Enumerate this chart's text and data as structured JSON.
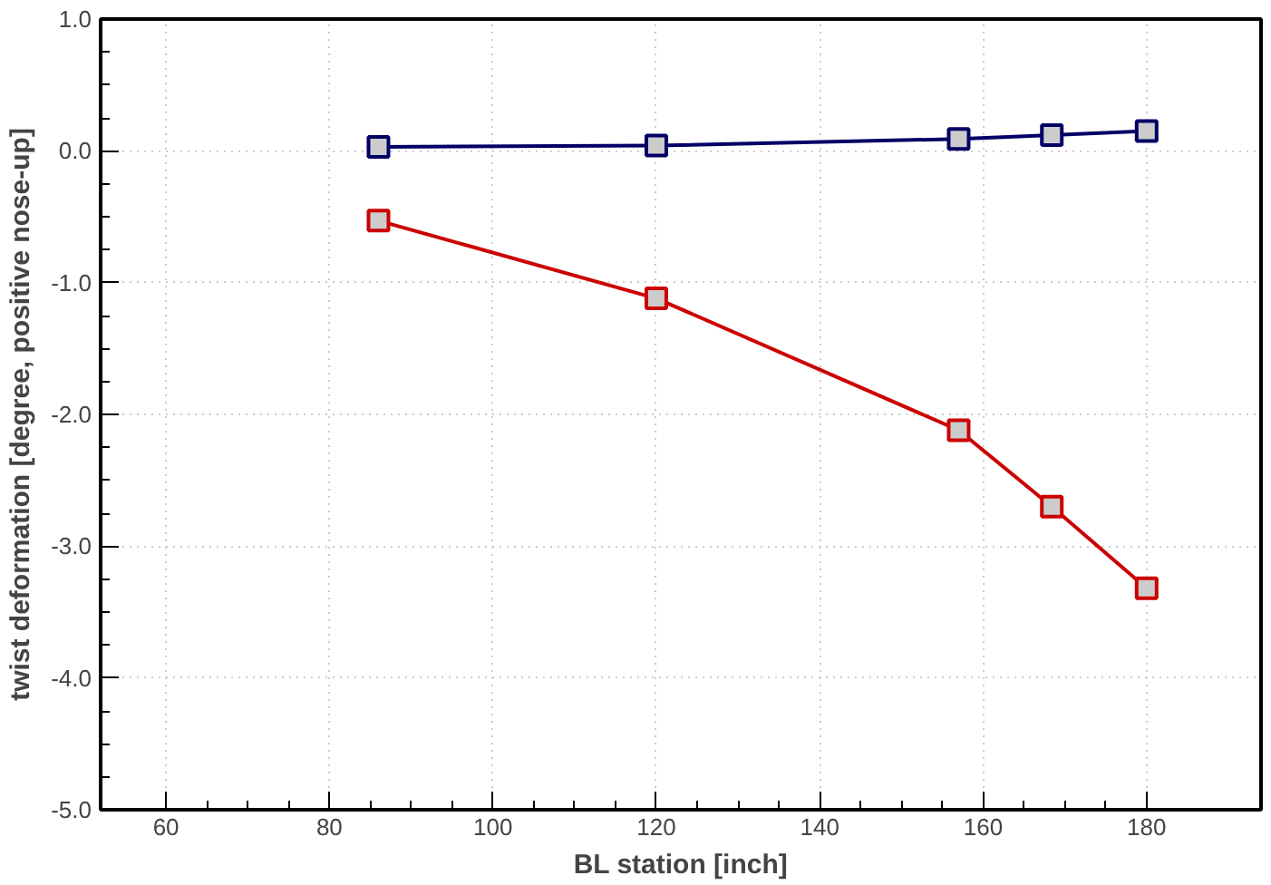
{
  "chart_data": {
    "type": "line",
    "xlabel": "BL station [inch]",
    "ylabel": "twist deformation [degree, positive nose-up]",
    "xlim": [
      52,
      194
    ],
    "xticks": [
      60,
      80,
      100,
      120,
      140,
      160,
      180
    ],
    "ylim": [
      -5,
      1
    ],
    "yticks": [
      {
        "value": 1,
        "label": "1.0"
      },
      {
        "value": 0,
        "label": "0.0"
      },
      {
        "value": -1,
        "label": "-1.0"
      },
      {
        "value": -2,
        "label": "-2.0"
      },
      {
        "value": -3,
        "label": "-3.0"
      },
      {
        "value": -4,
        "label": "-4.0"
      },
      {
        "value": -5,
        "label": "-5.0"
      }
    ],
    "grid": true,
    "marker": "square",
    "line_style": "solid",
    "series": [
      {
        "color": "#cc0000",
        "x": [
          86,
          120,
          157,
          168.4,
          180
        ],
        "values": [
          -0.53,
          -1.12,
          -2.12,
          -2.7,
          -3.32
        ]
      },
      {
        "color": "#000066",
        "x": [
          86,
          120,
          157,
          168.4,
          180
        ],
        "values": [
          0.03,
          0.04,
          0.09,
          0.12,
          0.15
        ]
      }
    ]
  }
}
